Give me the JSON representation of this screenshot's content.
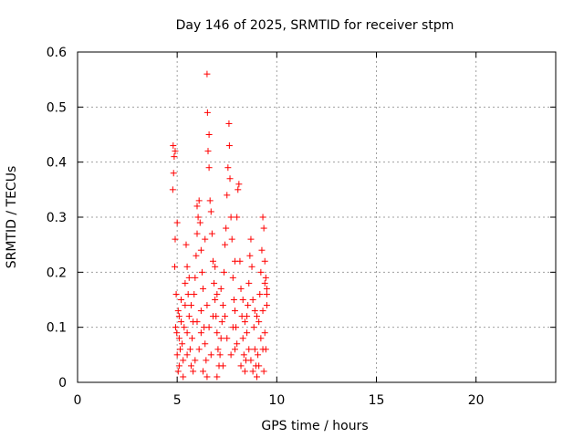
{
  "chart_data": {
    "type": "scatter",
    "title": "Day 146 of 2025, SRMTID for receiver stpm",
    "xlabel": "GPS time / hours",
    "ylabel": "SRMTID / TECUs",
    "xlim": [
      0,
      24
    ],
    "ylim": [
      0,
      0.6
    ],
    "xticks": [
      0,
      5,
      10,
      15,
      20
    ],
    "yticks": [
      0,
      0.1,
      0.2,
      0.3,
      0.4,
      0.5,
      0.6
    ],
    "xtick_labels": [
      "0",
      "5",
      "10",
      "15",
      "20"
    ],
    "ytick_labels": [
      "0",
      "0.1",
      "0.2",
      "0.3",
      "0.4",
      "0.5",
      "0.6"
    ],
    "grid": true,
    "marker": "+",
    "color": "#ff0000",
    "points": [
      [
        4.8,
        0.43
      ],
      [
        4.85,
        0.41
      ],
      [
        4.9,
        0.42
      ],
      [
        4.82,
        0.38
      ],
      [
        4.78,
        0.35
      ],
      [
        4.9,
        0.26
      ],
      [
        5.0,
        0.29
      ],
      [
        4.88,
        0.21
      ],
      [
        4.95,
        0.16
      ],
      [
        5.05,
        0.13
      ],
      [
        4.92,
        0.1
      ],
      [
        5.1,
        0.08
      ],
      [
        5.0,
        0.05
      ],
      [
        5.05,
        0.02
      ],
      [
        5.15,
        0.06
      ],
      [
        4.98,
        0.09
      ],
      [
        5.2,
        0.11
      ],
      [
        5.1,
        0.03
      ],
      [
        5.3,
        0.04
      ],
      [
        5.25,
        0.07
      ],
      [
        5.35,
        0.1
      ],
      [
        5.4,
        0.18
      ],
      [
        5.45,
        0.25
      ],
      [
        5.5,
        0.21
      ],
      [
        5.55,
        0.16
      ],
      [
        5.4,
        0.14
      ],
      [
        5.6,
        0.12
      ],
      [
        5.5,
        0.09
      ],
      [
        5.65,
        0.06
      ],
      [
        5.7,
        0.03
      ],
      [
        5.75,
        0.08
      ],
      [
        5.8,
        0.11
      ],
      [
        5.85,
        0.16
      ],
      [
        5.9,
        0.19
      ],
      [
        5.95,
        0.23
      ],
      [
        6.0,
        0.27
      ],
      [
        6.05,
        0.3
      ],
      [
        6.1,
        0.33
      ],
      [
        6.0,
        0.32
      ],
      [
        6.15,
        0.29
      ],
      [
        6.2,
        0.24
      ],
      [
        6.25,
        0.2
      ],
      [
        6.3,
        0.17
      ],
      [
        6.2,
        0.13
      ],
      [
        6.35,
        0.1
      ],
      [
        6.4,
        0.07
      ],
      [
        6.45,
        0.04
      ],
      [
        6.5,
        0.01
      ],
      [
        6.3,
        0.02
      ],
      [
        6.5,
        0.56
      ],
      [
        6.52,
        0.49
      ],
      [
        6.6,
        0.45
      ],
      [
        6.55,
        0.42
      ],
      [
        6.6,
        0.39
      ],
      [
        6.65,
        0.33
      ],
      [
        6.7,
        0.31
      ],
      [
        6.75,
        0.27
      ],
      [
        6.8,
        0.22
      ],
      [
        6.85,
        0.18
      ],
      [
        6.9,
        0.15
      ],
      [
        6.95,
        0.12
      ],
      [
        7.0,
        0.09
      ],
      [
        7.05,
        0.06
      ],
      [
        7.1,
        0.03
      ],
      [
        7.0,
        0.01
      ],
      [
        7.15,
        0.05
      ],
      [
        7.2,
        0.08
      ],
      [
        7.25,
        0.11
      ],
      [
        7.3,
        0.14
      ],
      [
        7.35,
        0.2
      ],
      [
        7.4,
        0.25
      ],
      [
        7.45,
        0.28
      ],
      [
        7.5,
        0.34
      ],
      [
        7.55,
        0.39
      ],
      [
        7.6,
        0.47
      ],
      [
        7.62,
        0.43
      ],
      [
        7.65,
        0.37
      ],
      [
        7.7,
        0.3
      ],
      [
        7.75,
        0.26
      ],
      [
        7.8,
        0.19
      ],
      [
        7.85,
        0.15
      ],
      [
        7.9,
        0.13
      ],
      [
        7.95,
        0.1
      ],
      [
        8.0,
        0.07
      ],
      [
        8.05,
        0.35
      ],
      [
        8.1,
        0.36
      ],
      [
        8.0,
        0.3
      ],
      [
        8.15,
        0.22
      ],
      [
        8.2,
        0.17
      ],
      [
        8.25,
        0.12
      ],
      [
        8.3,
        0.08
      ],
      [
        8.35,
        0.05
      ],
      [
        8.4,
        0.02
      ],
      [
        8.45,
        0.04
      ],
      [
        8.5,
        0.09
      ],
      [
        8.55,
        0.14
      ],
      [
        8.6,
        0.18
      ],
      [
        8.65,
        0.23
      ],
      [
        8.7,
        0.26
      ],
      [
        8.75,
        0.21
      ],
      [
        8.8,
        0.15
      ],
      [
        8.85,
        0.1
      ],
      [
        8.9,
        0.06
      ],
      [
        8.95,
        0.03
      ],
      [
        9.0,
        0.01
      ],
      [
        9.05,
        0.05
      ],
      [
        9.1,
        0.11
      ],
      [
        9.15,
        0.16
      ],
      [
        9.2,
        0.2
      ],
      [
        9.25,
        0.24
      ],
      [
        9.3,
        0.3
      ],
      [
        9.35,
        0.28
      ],
      [
        9.4,
        0.22
      ],
      [
        9.45,
        0.19
      ],
      [
        9.5,
        0.17
      ],
      [
        9.3,
        0.13
      ],
      [
        9.4,
        0.09
      ],
      [
        9.5,
        0.14
      ],
      [
        9.45,
        0.06
      ],
      [
        9.35,
        0.02
      ],
      [
        5.2,
        0.15
      ],
      [
        5.6,
        0.19
      ],
      [
        5.9,
        0.04
      ],
      [
        6.1,
        0.06
      ],
      [
        6.4,
        0.26
      ],
      [
        6.7,
        0.05
      ],
      [
        6.9,
        0.21
      ],
      [
        7.2,
        0.17
      ],
      [
        7.5,
        0.08
      ],
      [
        7.7,
        0.05
      ],
      [
        7.9,
        0.22
      ],
      [
        8.2,
        0.03
      ],
      [
        8.4,
        0.11
      ],
      [
        8.6,
        0.06
      ],
      [
        8.8,
        0.02
      ],
      [
        9.0,
        0.12
      ],
      [
        9.2,
        0.08
      ],
      [
        9.4,
        0.18
      ],
      [
        5.7,
        0.14
      ],
      [
        6.6,
        0.1
      ],
      [
        5.3,
        0.01
      ],
      [
        5.8,
        0.02
      ],
      [
        6.2,
        0.09
      ],
      [
        6.8,
        0.12
      ],
      [
        7.3,
        0.03
      ],
      [
        7.8,
        0.1
      ],
      [
        8.3,
        0.15
      ],
      [
        8.7,
        0.04
      ],
      [
        9.1,
        0.03
      ],
      [
        9.5,
        0.16
      ],
      [
        5.1,
        0.12
      ],
      [
        5.5,
        0.05
      ],
      [
        6.0,
        0.11
      ],
      [
        6.5,
        0.14
      ],
      [
        7.0,
        0.16
      ],
      [
        7.4,
        0.12
      ],
      [
        7.9,
        0.06
      ],
      [
        8.5,
        0.12
      ],
      [
        8.9,
        0.13
      ],
      [
        9.3,
        0.06
      ]
    ]
  }
}
